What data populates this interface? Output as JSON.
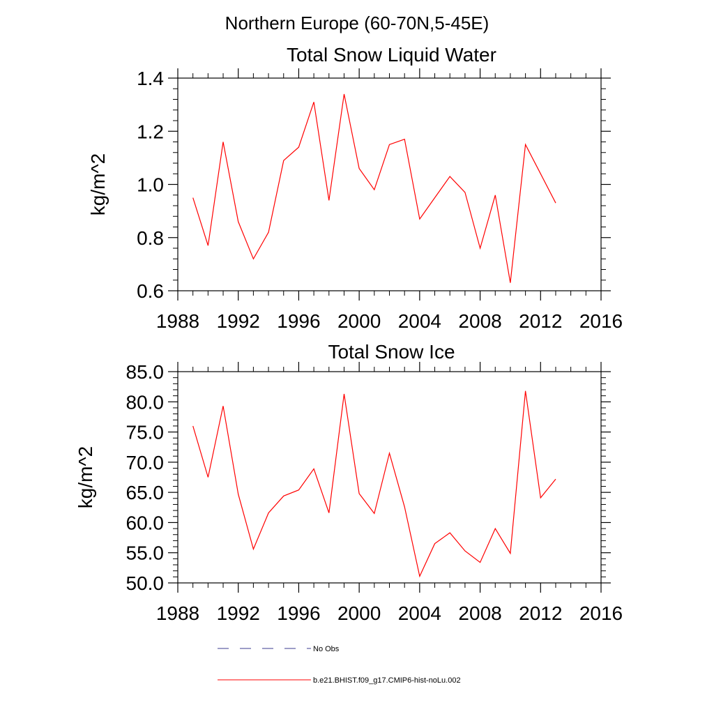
{
  "figure_title": "Northern Europe (60-70N,5-45E)",
  "chart_data": [
    {
      "type": "line",
      "title": "Total Snow Liquid Water",
      "xlabel": "",
      "ylabel": "kg/m^2",
      "xlim": [
        1988,
        2016
      ],
      "ylim": [
        0.6,
        1.4
      ],
      "x_ticks": [
        1988,
        1992,
        1996,
        2000,
        2004,
        2008,
        2012,
        2016
      ],
      "x_tick_labels": [
        "1988",
        "1992",
        "1996",
        "2000",
        "2004",
        "2008",
        "2012",
        "2016"
      ],
      "y_ticks": [
        0.6,
        0.8,
        1.0,
        1.2,
        1.4
      ],
      "y_tick_labels": [
        "0.6",
        "0.8",
        "1.0",
        "1.2",
        "1.4"
      ],
      "grid": false,
      "series": [
        {
          "name": "b.e21.BHIST.f09_g17.CMIP6-hist-noLu.002",
          "color": "#ff0000",
          "x": [
            1989,
            1990,
            1991,
            1992,
            1993,
            1994,
            1995,
            1996,
            1997,
            1998,
            1999,
            2000,
            2001,
            2002,
            2003,
            2004,
            2005,
            2006,
            2007,
            2008,
            2009,
            2010,
            2011,
            2012,
            2013
          ],
          "values": [
            0.95,
            0.77,
            1.16,
            0.86,
            0.72,
            0.82,
            1.09,
            1.14,
            1.31,
            0.94,
            1.34,
            1.06,
            0.98,
            1.15,
            1.17,
            0.87,
            0.95,
            1.03,
            0.97,
            0.76,
            0.96,
            0.63,
            1.15,
            1.04,
            0.93
          ]
        }
      ]
    },
    {
      "type": "line",
      "title": "Total Snow Ice",
      "xlabel": "",
      "ylabel": "kg/m^2",
      "xlim": [
        1988,
        2016
      ],
      "ylim": [
        50,
        85
      ],
      "x_ticks": [
        1988,
        1992,
        1996,
        2000,
        2004,
        2008,
        2012,
        2016
      ],
      "x_tick_labels": [
        "1988",
        "1992",
        "1996",
        "2000",
        "2004",
        "2008",
        "2012",
        "2016"
      ],
      "y_ticks": [
        50,
        55,
        60,
        65,
        70,
        75,
        80,
        85
      ],
      "y_tick_labels": [
        "50.0",
        "55.0",
        "60.0",
        "65.0",
        "70.0",
        "75.0",
        "80.0",
        "85.0"
      ],
      "grid": false,
      "series": [
        {
          "name": "b.e21.BHIST.f09_g17.CMIP6-hist-noLu.002",
          "color": "#ff0000",
          "x": [
            1989,
            1990,
            1991,
            1992,
            1993,
            1994,
            1995,
            1996,
            1997,
            1998,
            1999,
            2000,
            2001,
            2002,
            2003,
            2004,
            2005,
            2006,
            2007,
            2008,
            2009,
            2010,
            2011,
            2012,
            2013
          ],
          "values": [
            76.0,
            67.5,
            79.3,
            64.7,
            55.6,
            61.6,
            64.4,
            65.4,
            68.9,
            61.6,
            81.3,
            64.8,
            61.5,
            71.5,
            62.6,
            51.1,
            56.5,
            58.3,
            55.3,
            53.4,
            59.0,
            54.9,
            81.8,
            64.1,
            67.2
          ]
        }
      ]
    }
  ],
  "legend": {
    "placement": "bottom",
    "items": [
      {
        "label": "No Obs",
        "color": "#3b3b8f",
        "style": "dashed"
      },
      {
        "label": "b.e21.BHIST.f09_g17.CMIP6-hist-noLu.002",
        "color": "#ff0000",
        "style": "solid"
      }
    ]
  }
}
